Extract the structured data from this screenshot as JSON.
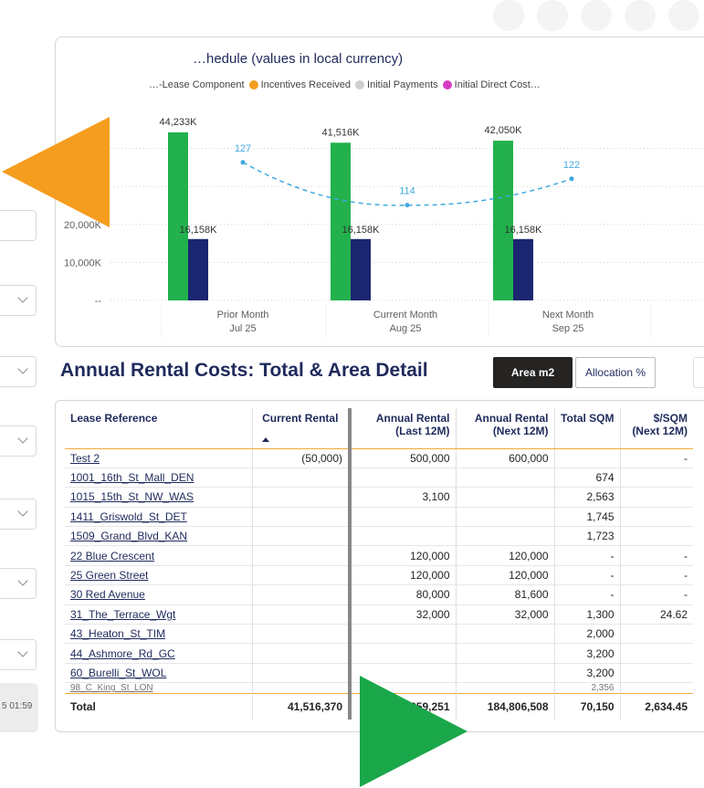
{
  "chart": {
    "title": "…hedule (values in local currency)",
    "legend": [
      {
        "label": "…-Lease Component",
        "color": ""
      },
      {
        "label": "Incentives Received",
        "color": "#f59d1f"
      },
      {
        "label": "Initial Payments",
        "color": "#cfcfcf"
      },
      {
        "label": "Initial Direct Cost…",
        "color": "#d63cc2"
      }
    ]
  },
  "chart_data": {
    "type": "bar",
    "categories": [
      "Prior Month",
      "Current Month",
      "Next Month"
    ],
    "category_sub": [
      "Jul 25",
      "Aug 25",
      "Sep 25"
    ],
    "series": [
      {
        "values": [
          44233,
          41516,
          42050
        ],
        "labels": [
          "44,233K",
          "41,516K",
          "42,050K"
        ],
        "color": "#22b14c"
      },
      {
        "values": [
          16158,
          16158,
          16158
        ],
        "labels": [
          "16,158K",
          "16,158K",
          "16,158K"
        ],
        "color": "#1b2670"
      }
    ],
    "line": {
      "values": [
        127,
        114,
        122
      ],
      "labels": [
        "127",
        "114",
        "122"
      ],
      "color": "#3fa9e0"
    },
    "yticks": [
      "20,000K",
      "10,000K",
      "--"
    ],
    "ylim": [
      0,
      50000
    ]
  },
  "section": {
    "title": "Annual Rental Costs: Total & Area Detail",
    "btn_area": "Area m2",
    "btn_alloc": "Allocation %"
  },
  "table": {
    "headers": {
      "ref": "Lease Reference",
      "current": "Current Rental",
      "last": "Annual Rental (Last 12M)",
      "next": "Annual Rental (Next 12M)",
      "sqm": "Total SQM",
      "persqm": "$/SQM (Next 12M)"
    },
    "rows": [
      {
        "ref": "Test 2",
        "current": "(50,000)",
        "last": "500,000",
        "next": "600,000",
        "sqm": "",
        "persqm": "-"
      },
      {
        "ref": "1001_16th_St_Mall_DEN",
        "current": "",
        "last": "",
        "next": "",
        "sqm": "674",
        "persqm": ""
      },
      {
        "ref": "1015_15th_St_NW_WAS",
        "current": "",
        "last": "3,100",
        "next": "",
        "sqm": "2,563",
        "persqm": ""
      },
      {
        "ref": "1411_Griswold_St_DET",
        "current": "",
        "last": "",
        "next": "",
        "sqm": "1,745",
        "persqm": ""
      },
      {
        "ref": "1509_Grand_Blvd_KAN",
        "current": "",
        "last": "",
        "next": "",
        "sqm": "1,723",
        "persqm": ""
      },
      {
        "ref": "22 Blue Crescent",
        "current": "",
        "last": "120,000",
        "next": "120,000",
        "sqm": "-",
        "persqm": "-"
      },
      {
        "ref": "25 Green Street",
        "current": "",
        "last": "120,000",
        "next": "120,000",
        "sqm": "-",
        "persqm": "-"
      },
      {
        "ref": "30 Red Avenue",
        "current": "",
        "last": "80,000",
        "next": "81,600",
        "sqm": "-",
        "persqm": "-"
      },
      {
        "ref": "31_The_Terrace_Wgt",
        "current": "",
        "last": "32,000",
        "next": "32,000",
        "sqm": "1,300",
        "persqm": "24.62"
      },
      {
        "ref": "43_Heaton_St_TIM",
        "current": "",
        "last": "",
        "next": "",
        "sqm": "2,000",
        "persqm": ""
      },
      {
        "ref": "44_Ashmore_Rd_GC",
        "current": "",
        "last": "",
        "next": "",
        "sqm": "3,200",
        "persqm": ""
      },
      {
        "ref": "60_Burelli_St_WOL",
        "current": "",
        "last": "",
        "next": "",
        "sqm": "3,200",
        "persqm": ""
      }
    ],
    "cut_row": {
      "ref": "98_C_King_St_LON",
      "sqm": "2,356"
    },
    "total": {
      "label": "Total",
      "current": "41,516,370",
      "last": "…359,251",
      "next": "184,806,508",
      "sqm": "70,150",
      "persqm": "2,634.45"
    }
  },
  "sidebar": {
    "refresh_text": "5 01:59"
  }
}
